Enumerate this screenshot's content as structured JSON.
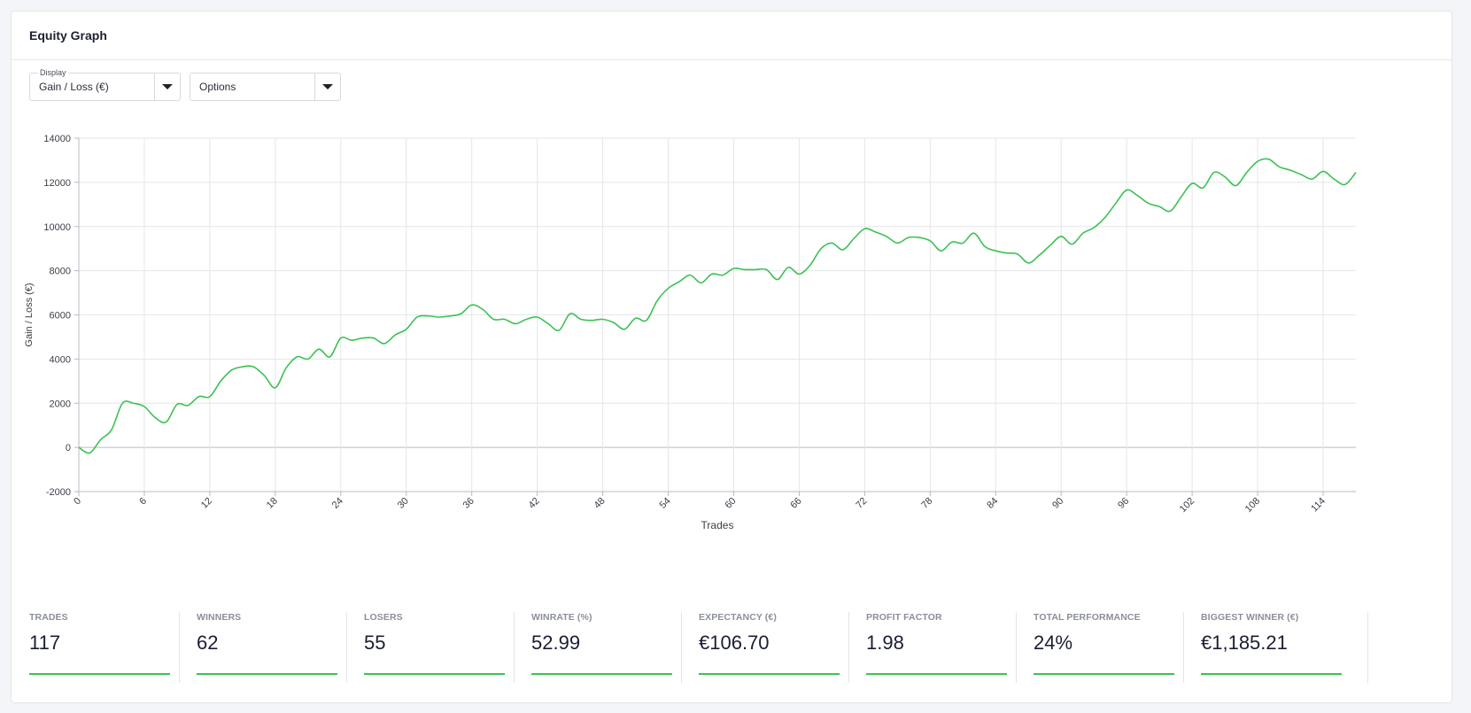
{
  "card": {
    "title": "Equity Graph"
  },
  "controls": {
    "display_label": "Display",
    "display_value": "Gain / Loss (€)",
    "options_value": "Options"
  },
  "chart_data": {
    "type": "line",
    "xlabel": "Trades",
    "ylabel": "Gain / Loss (€)",
    "ylim": [
      -2000,
      14000
    ],
    "xlim": [
      0,
      117
    ],
    "yticks": [
      14000,
      12000,
      10000,
      8000,
      6000,
      4000,
      2000,
      0,
      -2000
    ],
    "xticks": [
      0,
      6,
      12,
      18,
      24,
      30,
      36,
      42,
      48,
      54,
      60,
      66,
      72,
      78,
      84,
      90,
      96,
      102,
      108,
      114
    ],
    "grid": true,
    "line_color": "#3cc153",
    "series": [
      {
        "values": [
          0,
          -250,
          350,
          800,
          2000,
          2000,
          1850,
          1350,
          1150,
          1950,
          1900,
          2300,
          2300,
          3000,
          3500,
          3650,
          3650,
          3250,
          2700,
          3600,
          4100,
          4000,
          4450,
          4100,
          4950,
          4850,
          4950,
          4950,
          4700,
          5100,
          5350,
          5900,
          5950,
          5900,
          5950,
          6050,
          6450,
          6250,
          5800,
          5800,
          5600,
          5800,
          5900,
          5600,
          5300,
          6050,
          5800,
          5750,
          5800,
          5650,
          5350,
          5850,
          5750,
          6650,
          7200,
          7500,
          7800,
          7450,
          7850,
          7800,
          8100,
          8050,
          8050,
          8050,
          7600,
          8150,
          7850,
          8250,
          9000,
          9250,
          8950,
          9450,
          9900,
          9750,
          9550,
          9250,
          9500,
          9500,
          9350,
          8900,
          9300,
          9250,
          9700,
          9100,
          8900,
          8800,
          8750,
          8350,
          8700,
          9150,
          9550,
          9200,
          9700,
          9950,
          10400,
          11050,
          11650,
          11400,
          11050,
          10900,
          10700,
          11350,
          11950,
          11750,
          12450,
          12250,
          11850,
          12450,
          12950,
          13050,
          12700,
          12550,
          12350,
          12150,
          12500,
          12150,
          11900,
          12450
        ]
      }
    ]
  },
  "stats": [
    {
      "label": "TRADES",
      "value": "117"
    },
    {
      "label": "WINNERS",
      "value": "62"
    },
    {
      "label": "LOSERS",
      "value": "55"
    },
    {
      "label": "WINRATE (%)",
      "value": "52.99"
    },
    {
      "label": "EXPECTANCY (€)",
      "value": "€106.70"
    },
    {
      "label": "PROFIT FACTOR",
      "value": "1.98"
    },
    {
      "label": "TOTAL PERFORMANCE",
      "value": "24%"
    },
    {
      "label": "BIGGEST WINNER (€)",
      "value": "€1,185.21"
    }
  ],
  "colors": {
    "accent": "#3cc153",
    "title": "#1d2033",
    "muted": "#8b8f99"
  }
}
